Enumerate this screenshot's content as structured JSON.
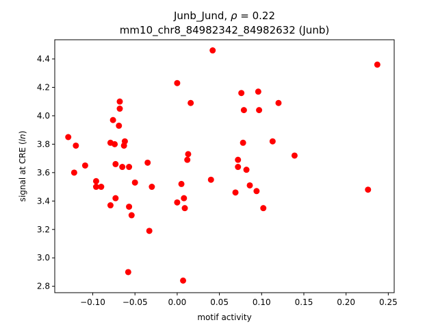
{
  "chart_data": {
    "type": "scatter",
    "title_line1": "Junb_Jund, ",
    "title_rho_symbol": "ρ",
    "title_rho_value": " = 0.22",
    "title_line2": "mm10_chr8_84982342_84982632 (Junb)",
    "xlabel": "motif activity",
    "ylabel_prefix": "signal at CRE (",
    "ylabel_italic": "ln",
    "ylabel_suffix": ")",
    "xlim": [
      -0.145,
      0.257
    ],
    "ylim": [
      2.755,
      4.535
    ],
    "xticks": [
      -0.1,
      -0.05,
      0.0,
      0.05,
      0.1,
      0.15,
      0.2,
      0.25
    ],
    "xtick_labels": [
      "−0.10",
      "−0.05",
      "0.00",
      "0.05",
      "0.10",
      "0.15",
      "0.20",
      "0.25"
    ],
    "yticks": [
      2.8,
      3.0,
      3.2,
      3.4,
      3.6,
      3.8,
      4.0,
      4.2,
      4.4
    ],
    "ytick_labels": [
      "2.8",
      "3.0",
      "3.2",
      "3.4",
      "3.6",
      "3.8",
      "4.0",
      "4.2",
      "4.4"
    ],
    "grid": false,
    "marker_color": "#ff0000",
    "points": [
      {
        "x": -0.129,
        "y": 3.85
      },
      {
        "x": -0.12,
        "y": 3.79
      },
      {
        "x": -0.122,
        "y": 3.6
      },
      {
        "x": -0.109,
        "y": 3.65
      },
      {
        "x": -0.096,
        "y": 3.54
      },
      {
        "x": -0.096,
        "y": 3.5
      },
      {
        "x": -0.09,
        "y": 3.5
      },
      {
        "x": -0.079,
        "y": 3.81
      },
      {
        "x": -0.074,
        "y": 3.8
      },
      {
        "x": -0.076,
        "y": 3.97
      },
      {
        "x": -0.068,
        "y": 4.1
      },
      {
        "x": -0.068,
        "y": 4.05
      },
      {
        "x": -0.069,
        "y": 3.93
      },
      {
        "x": -0.062,
        "y": 3.82
      },
      {
        "x": -0.063,
        "y": 3.79
      },
      {
        "x": -0.073,
        "y": 3.66
      },
      {
        "x": -0.065,
        "y": 3.64
      },
      {
        "x": -0.057,
        "y": 3.64
      },
      {
        "x": -0.079,
        "y": 3.37
      },
      {
        "x": -0.073,
        "y": 3.42
      },
      {
        "x": -0.05,
        "y": 3.53
      },
      {
        "x": -0.057,
        "y": 3.36
      },
      {
        "x": -0.054,
        "y": 3.3
      },
      {
        "x": -0.058,
        "y": 2.9
      },
      {
        "x": -0.035,
        "y": 3.67
      },
      {
        "x": -0.03,
        "y": 3.5
      },
      {
        "x": -0.033,
        "y": 3.19
      },
      {
        "x": 0.0,
        "y": 4.23
      },
      {
        "x": 0.016,
        "y": 4.09
      },
      {
        "x": 0.013,
        "y": 3.73
      },
      {
        "x": 0.012,
        "y": 3.69
      },
      {
        "x": 0.005,
        "y": 3.52
      },
      {
        "x": 0.008,
        "y": 3.42
      },
      {
        "x": 0.0,
        "y": 3.39
      },
      {
        "x": 0.009,
        "y": 3.35
      },
      {
        "x": 0.007,
        "y": 2.84
      },
      {
        "x": 0.042,
        "y": 4.46
      },
      {
        "x": 0.04,
        "y": 3.55
      },
      {
        "x": 0.069,
        "y": 3.46
      },
      {
        "x": 0.072,
        "y": 3.69
      },
      {
        "x": 0.072,
        "y": 3.64
      },
      {
        "x": 0.076,
        "y": 4.16
      },
      {
        "x": 0.079,
        "y": 4.04
      },
      {
        "x": 0.078,
        "y": 3.81
      },
      {
        "x": 0.082,
        "y": 3.62
      },
      {
        "x": 0.086,
        "y": 3.51
      },
      {
        "x": 0.096,
        "y": 4.17
      },
      {
        "x": 0.097,
        "y": 4.04
      },
      {
        "x": 0.094,
        "y": 3.47
      },
      {
        "x": 0.102,
        "y": 3.35
      },
      {
        "x": 0.113,
        "y": 3.82
      },
      {
        "x": 0.12,
        "y": 4.09
      },
      {
        "x": 0.139,
        "y": 3.72
      },
      {
        "x": 0.226,
        "y": 3.48
      },
      {
        "x": 0.237,
        "y": 4.36
      }
    ]
  }
}
